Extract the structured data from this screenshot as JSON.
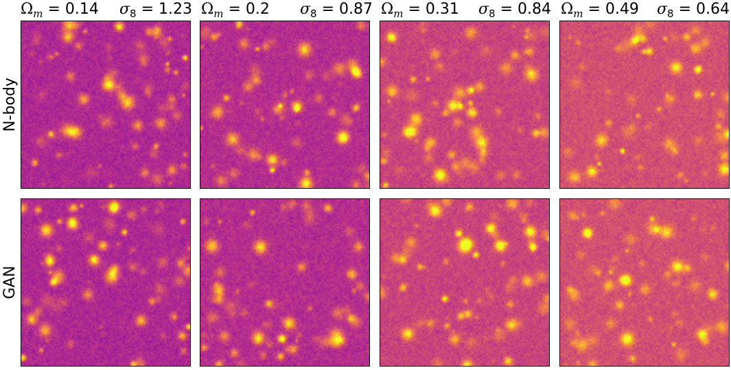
{
  "colormap": [
    "#0d0887",
    "#6a00a8",
    "#b12a90",
    "#e16462",
    "#fca636",
    "#f0f921"
  ],
  "columns": [
    {
      "omega_label": "Ω",
      "omega_sub": "m",
      "omega_value": "= 0.14",
      "sigma_label": "σ",
      "sigma_sub": "8",
      "sigma_value": "= 1.23"
    },
    {
      "omega_label": "Ω",
      "omega_sub": "m",
      "omega_value": "= 0.2",
      "sigma_label": "σ",
      "sigma_sub": "8",
      "sigma_value": "= 0.87"
    },
    {
      "omega_label": "Ω",
      "omega_sub": "m",
      "omega_value": "= 0.31",
      "sigma_label": "σ",
      "sigma_sub": "8",
      "sigma_value": "= 0.84"
    },
    {
      "omega_label": "Ω",
      "omega_sub": "m",
      "omega_value": "= 0.49",
      "sigma_label": "σ",
      "sigma_sub": "8",
      "sigma_value": "= 0.64"
    }
  ],
  "rows": [
    {
      "label": "N-body"
    },
    {
      "label": "GAN"
    }
  ]
}
